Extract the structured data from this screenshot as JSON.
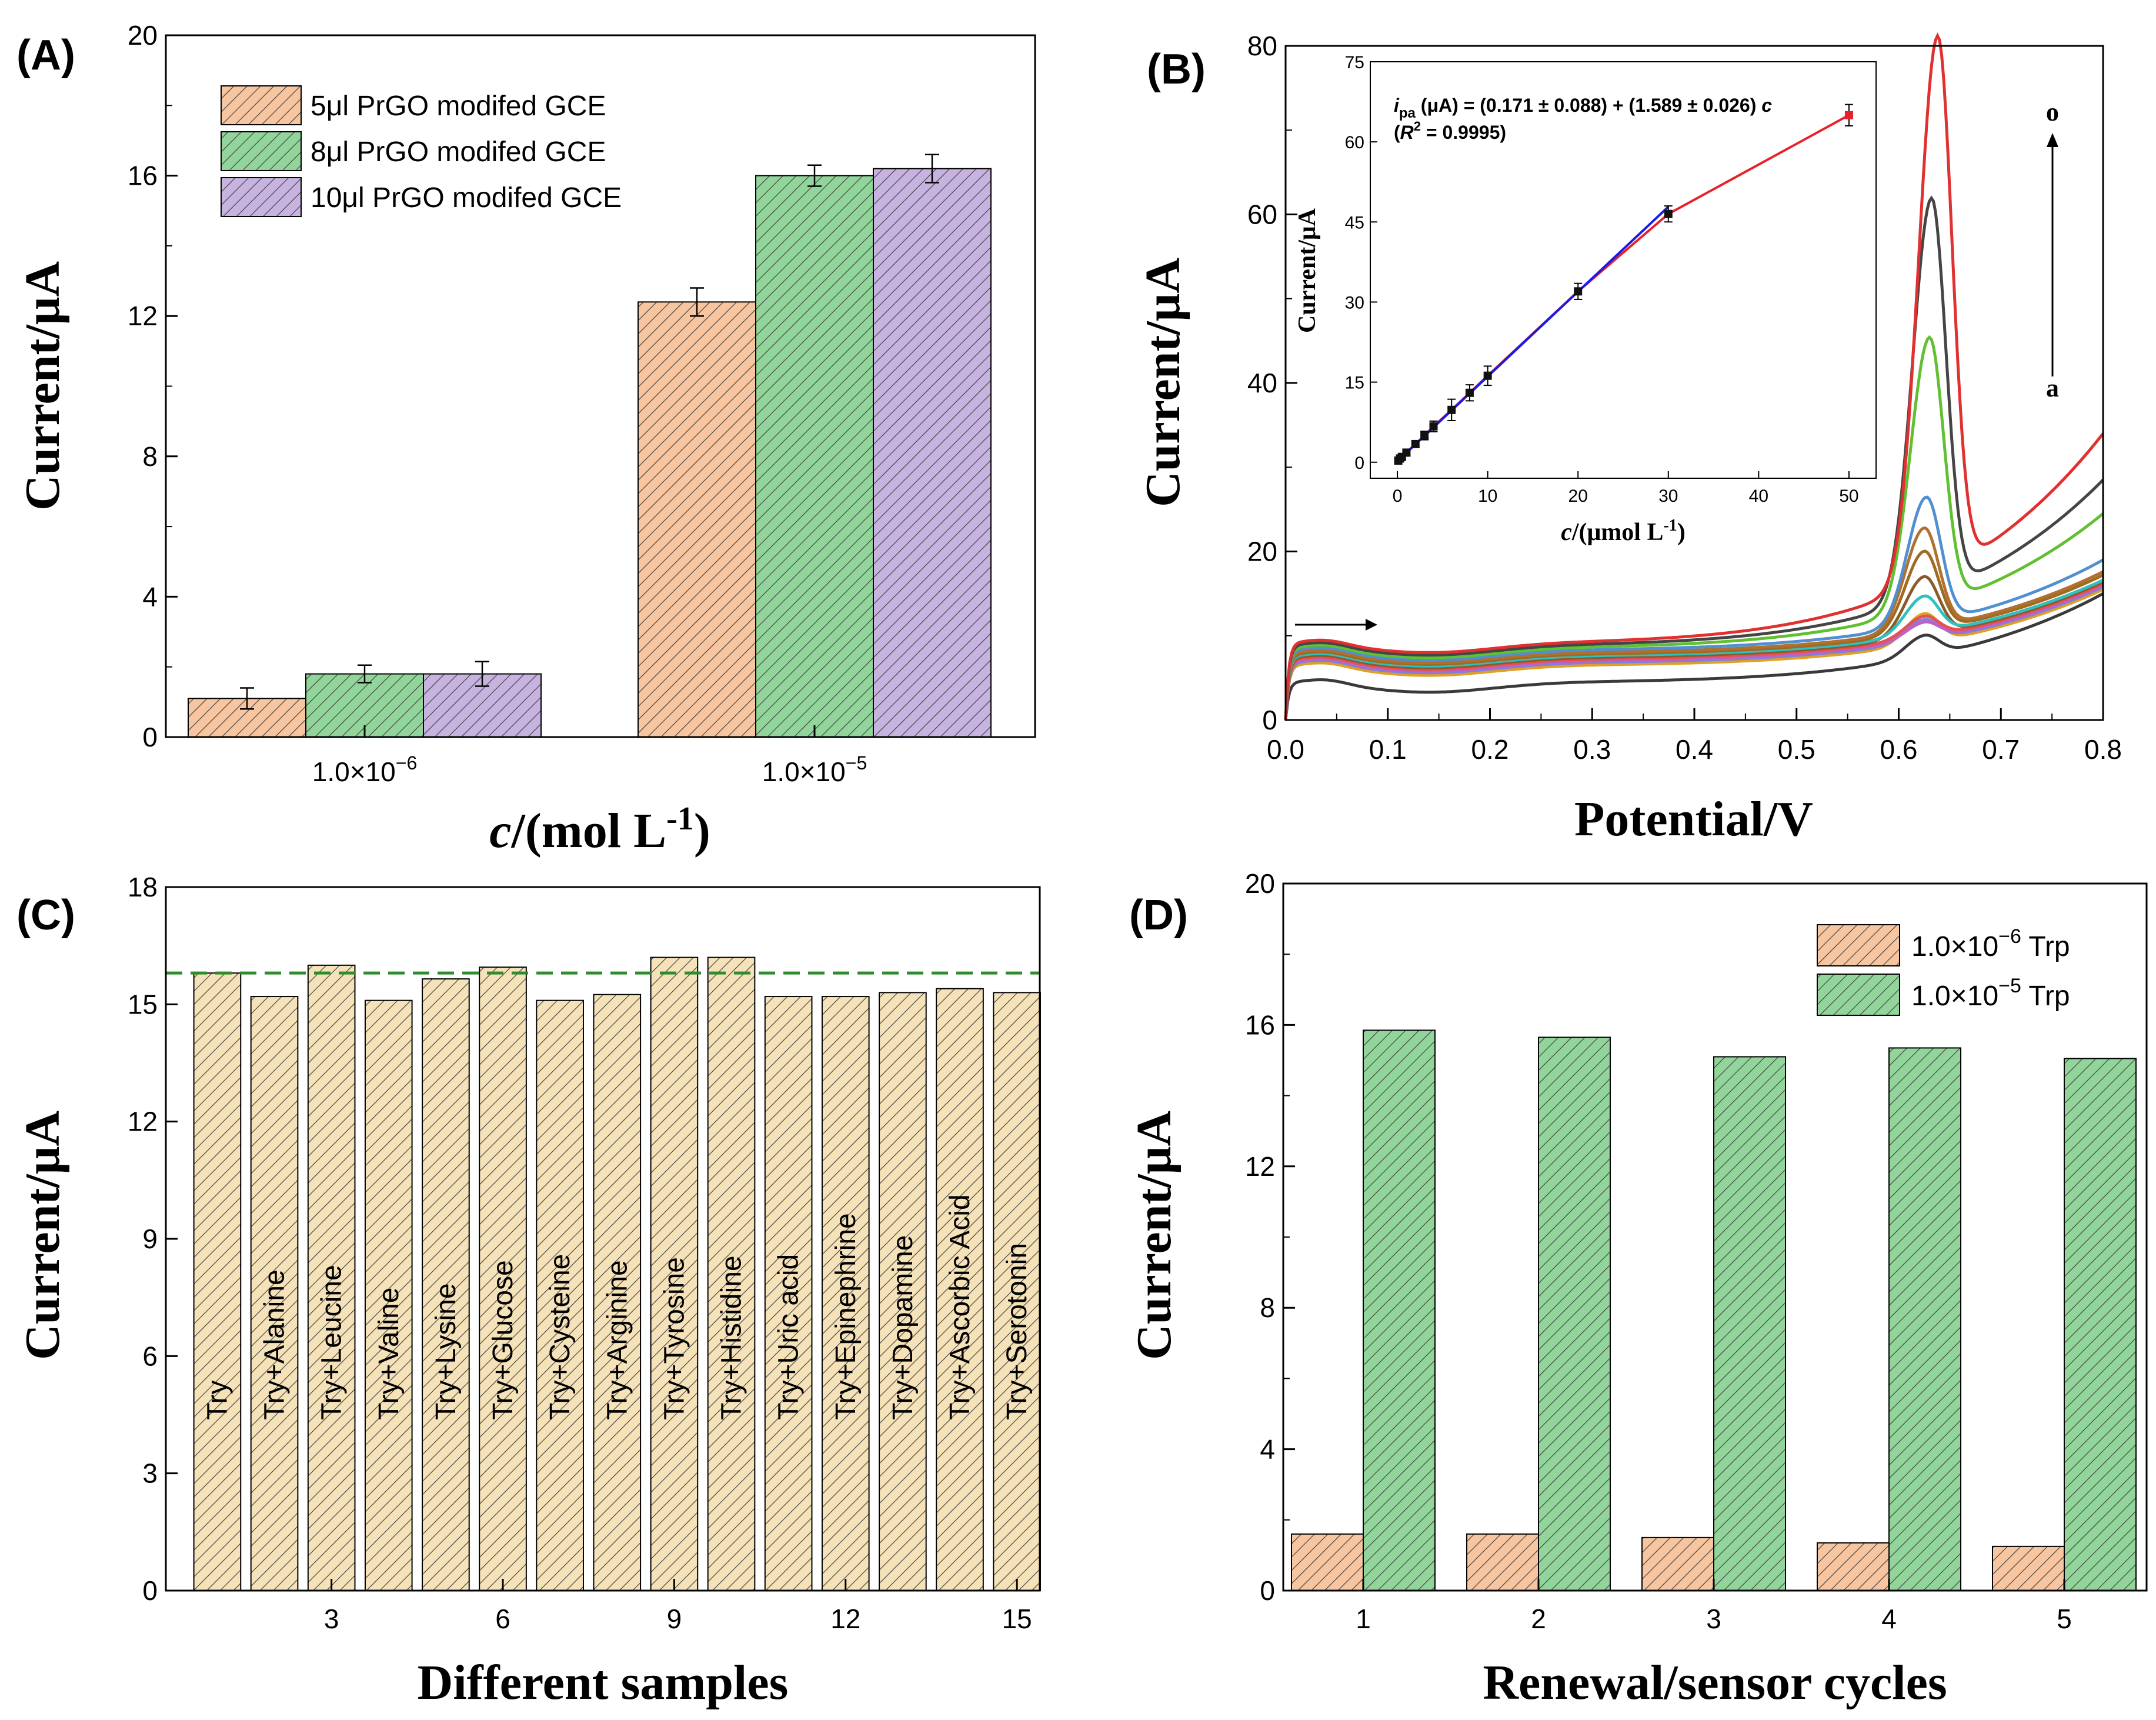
{
  "colors": {
    "orange": "#f7c59f",
    "green": "#92d59b",
    "purple": "#c6b3e0",
    "beige": "#f6e2b8",
    "dash": "#2e8b2e",
    "inset_red": "#e8202a",
    "inset_blue": "#1a1ae6"
  },
  "chart_data": [
    {
      "id": "A",
      "panel_label": "(A)",
      "type": "bar",
      "xlabel_italic": "c",
      "xlabel_rest": "/(mol L",
      "xlabel_sup": "-1",
      "xlabel_end": ")",
      "ylabel": "Current/μA",
      "ylim": [
        0,
        20
      ],
      "yticks": [
        "0",
        "4",
        "8",
        "12",
        "16",
        "20"
      ],
      "categories": [
        {
          "base": "1.0×10",
          "exp": "−6"
        },
        {
          "base": "1.0×10",
          "exp": "−5"
        }
      ],
      "series": [
        {
          "name": "5μl PrGO modifed GCE",
          "values": [
            1.1,
            12.4
          ],
          "errors": [
            0.3,
            0.4
          ],
          "color": "orange"
        },
        {
          "name": "8μl PrGO modifed GCE",
          "values": [
            1.8,
            16.0
          ],
          "errors": [
            0.25,
            0.3
          ],
          "color": "green"
        },
        {
          "name": "10μl PrGO modifed GCE",
          "values": [
            1.8,
            16.2
          ],
          "errors": [
            0.35,
            0.4
          ],
          "color": "purple"
        }
      ]
    },
    {
      "id": "B",
      "panel_label": "(B)",
      "type": "line",
      "xlabel": "Potential/V",
      "ylabel": "Current/μA",
      "xlim": [
        0,
        0.8
      ],
      "ylim": [
        0,
        80
      ],
      "xticks": [
        "0.0",
        "0.1",
        "0.2",
        "0.3",
        "0.4",
        "0.5",
        "0.6",
        "0.7",
        "0.8"
      ],
      "yticks": [
        "0",
        "20",
        "40",
        "60",
        "80"
      ],
      "curve_start_label": "a",
      "curve_end_label": "o",
      "series": [
        {
          "color": "#3a3a3a",
          "base": 4.5,
          "peak": 2.5,
          "peak_x": 0.625,
          "tail": 15.0
        },
        {
          "color": "#e0a020",
          "base": 6.5,
          "peak": 3.5,
          "peak_x": 0.625,
          "tail": 15.5
        },
        {
          "color": "#8080e0",
          "base": 6.8,
          "peak": 2.5,
          "peak_x": 0.625,
          "tail": 15.8
        },
        {
          "color": "#c060c0",
          "base": 7.0,
          "peak": 2.0,
          "peak_x": 0.625,
          "tail": 16.0
        },
        {
          "color": "#e85050",
          "base": 7.2,
          "peak": 2.5,
          "peak_x": 0.625,
          "tail": 16.2
        },
        {
          "color": "#8b5a2b",
          "base": 7.4,
          "peak": 7.0,
          "peak_x": 0.625,
          "tail": 16.4
        },
        {
          "color": "#30c0c0",
          "base": 7.6,
          "peak": 4.5,
          "peak_x": 0.625,
          "tail": 16.6
        },
        {
          "color": "#a06a20",
          "base": 7.8,
          "peak": 9.5,
          "peak_x": 0.625,
          "tail": 17.2
        },
        {
          "color": "#b07030",
          "base": 8.0,
          "peak": 12.0,
          "peak_x": 0.625,
          "tail": 17.6
        },
        {
          "color": "#5090d0",
          "base": 8.3,
          "peak": 15.0,
          "peak_x": 0.627,
          "tail": 19.0
        },
        {
          "color": "#60c030",
          "base": 8.6,
          "peak": 32.0,
          "peak_x": 0.63,
          "tail": 24.5
        },
        {
          "color": "#454545",
          "base": 8.9,
          "peak": 47.0,
          "peak_x": 0.632,
          "tail": 28.5
        },
        {
          "color": "#e03030",
          "base": 9.2,
          "peak": 64.0,
          "peak_x": 0.638,
          "tail": 34.0
        }
      ],
      "inset": {
        "type": "scatter",
        "xlabel_italic": "c",
        "xlabel_rest": "/(μmol L",
        "xlabel_sup": "-1",
        "xlabel_end": ")",
        "ylabel": "Current/μA",
        "xlim": [
          -3,
          53
        ],
        "ylim": [
          -3,
          75
        ],
        "xticks": [
          "0",
          "10",
          "20",
          "30",
          "40",
          "50"
        ],
        "yticks": [
          "0",
          "15",
          "30",
          "45",
          "60",
          "75"
        ],
        "equation_prefix": "i",
        "equation_sub": "pa",
        "equation_rest": " (μA) = (0.171 ± 0.088) + (1.589 ± 0.026) ",
        "equation_var": "c",
        "r2_open": "(",
        "r2_var": "R",
        "r2_sup": "2",
        "r2_rest": " = 0.9995)",
        "x": [
          0.1,
          0.3,
          0.5,
          1.0,
          2.0,
          3.0,
          4.0,
          6.0,
          8.0,
          10.0,
          20.0,
          30.0,
          50.0
        ],
        "y": [
          0.3,
          0.7,
          1.0,
          1.8,
          3.4,
          5.0,
          6.7,
          9.8,
          13.0,
          16.2,
          32.0,
          46.5,
          65.0
        ],
        "err": [
          0.3,
          0.3,
          0.3,
          0.5,
          0.6,
          0.8,
          1.0,
          2.0,
          1.5,
          1.8,
          1.5,
          1.5,
          2.0
        ]
      }
    },
    {
      "id": "C",
      "panel_label": "(C)",
      "type": "bar",
      "xlabel": "Different samples",
      "ylabel": "Current/μA",
      "ylim": [
        0,
        18
      ],
      "xlim": [
        0.1,
        15.4
      ],
      "yticks": [
        "0",
        "3",
        "6",
        "9",
        "12",
        "15",
        "18"
      ],
      "xticks": [
        "3",
        "6",
        "9",
        "12",
        "15"
      ],
      "reference_value": 15.8,
      "categories": [
        "Try",
        "Try+Alanine",
        "Try+Leucine",
        "Try+Valine",
        "Try+Lysine",
        "Try+Glucose",
        "Try+Cysteine",
        "Try+Arginine",
        "Try+Tyrosine",
        "Try+Histidine",
        "Try+Uric acid",
        "Try+Epinephrine",
        "Try+Dopamine",
        "Try+Ascorbic Acid",
        "Try+Serotonin"
      ],
      "values": [
        15.8,
        15.2,
        16.0,
        15.1,
        15.65,
        15.95,
        15.1,
        15.25,
        16.2,
        16.2,
        15.2,
        15.2,
        15.3,
        15.4,
        15.3
      ]
    },
    {
      "id": "D",
      "panel_label": "(D)",
      "type": "bar",
      "xlabel": "Renewal/sensor cycles",
      "ylabel": "Current/μA",
      "ylim": [
        0,
        20
      ],
      "yticks": [
        "0",
        "4",
        "8",
        "12",
        "16",
        "20"
      ],
      "categories": [
        "1",
        "2",
        "3",
        "4",
        "5"
      ],
      "series": [
        {
          "name_base": "1.0×10",
          "name_exp": "−6",
          "name_end": " Trp",
          "values": [
            1.6,
            1.6,
            1.5,
            1.35,
            1.25
          ],
          "color": "orange"
        },
        {
          "name_base": "1.0×10",
          "name_exp": "−5",
          "name_end": " Trp",
          "values": [
            15.85,
            15.65,
            15.1,
            15.35,
            15.05
          ],
          "color": "green"
        }
      ]
    }
  ]
}
